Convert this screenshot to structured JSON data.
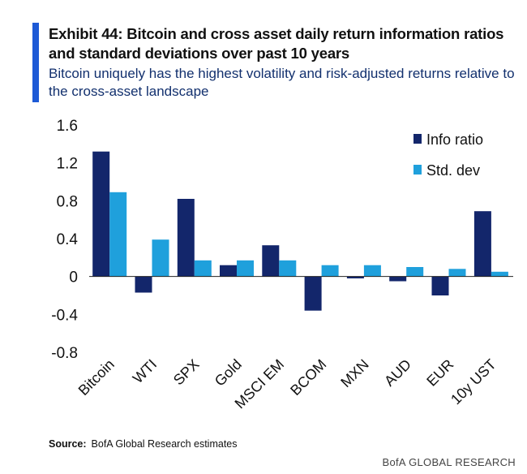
{
  "header": {
    "title": "Exhibit 44: Bitcoin and cross asset daily return information ratios and standard deviations over past 10 years",
    "subtitle": "Bitcoin uniquely has the highest volatility and risk-adjusted returns relative to the cross-asset landscape"
  },
  "footer": {
    "source_label": "Source:",
    "source_text": "BofA Global Research estimates",
    "brand": "BofA GLOBAL RESEARCH"
  },
  "colors": {
    "accent": "#1d5ad6",
    "info_ratio": "#13266b",
    "std_dev": "#1fa0dc"
  },
  "chart_data": {
    "type": "bar",
    "title": "Exhibit 44: Bitcoin and cross asset daily return information ratios and standard deviations over past 10 years",
    "xlabel": "",
    "ylabel": "",
    "ylim": [
      -0.8,
      1.6
    ],
    "yticks": [
      1.6,
      1.2,
      0.8,
      0.4,
      0,
      -0.4,
      -0.8
    ],
    "ytick_labels": [
      "1.6",
      "1.2",
      "0.8",
      "0.4",
      "0",
      "-0.4",
      "-0.8"
    ],
    "grid": false,
    "legend_position": "top-right",
    "categories": [
      "Bitcoin",
      "WTI",
      "SPX",
      "Gold",
      "MSCI EM",
      "BCOM",
      "MXN",
      "AUD",
      "EUR",
      "10y UST"
    ],
    "series": [
      {
        "name": "Info ratio",
        "values": [
          1.32,
          -0.17,
          0.82,
          0.12,
          0.33,
          -0.36,
          -0.02,
          -0.05,
          -0.2,
          0.69
        ]
      },
      {
        "name": "Std. dev",
        "values": [
          0.89,
          0.39,
          0.17,
          0.17,
          0.17,
          0.12,
          0.12,
          0.1,
          0.08,
          0.05
        ]
      }
    ]
  }
}
